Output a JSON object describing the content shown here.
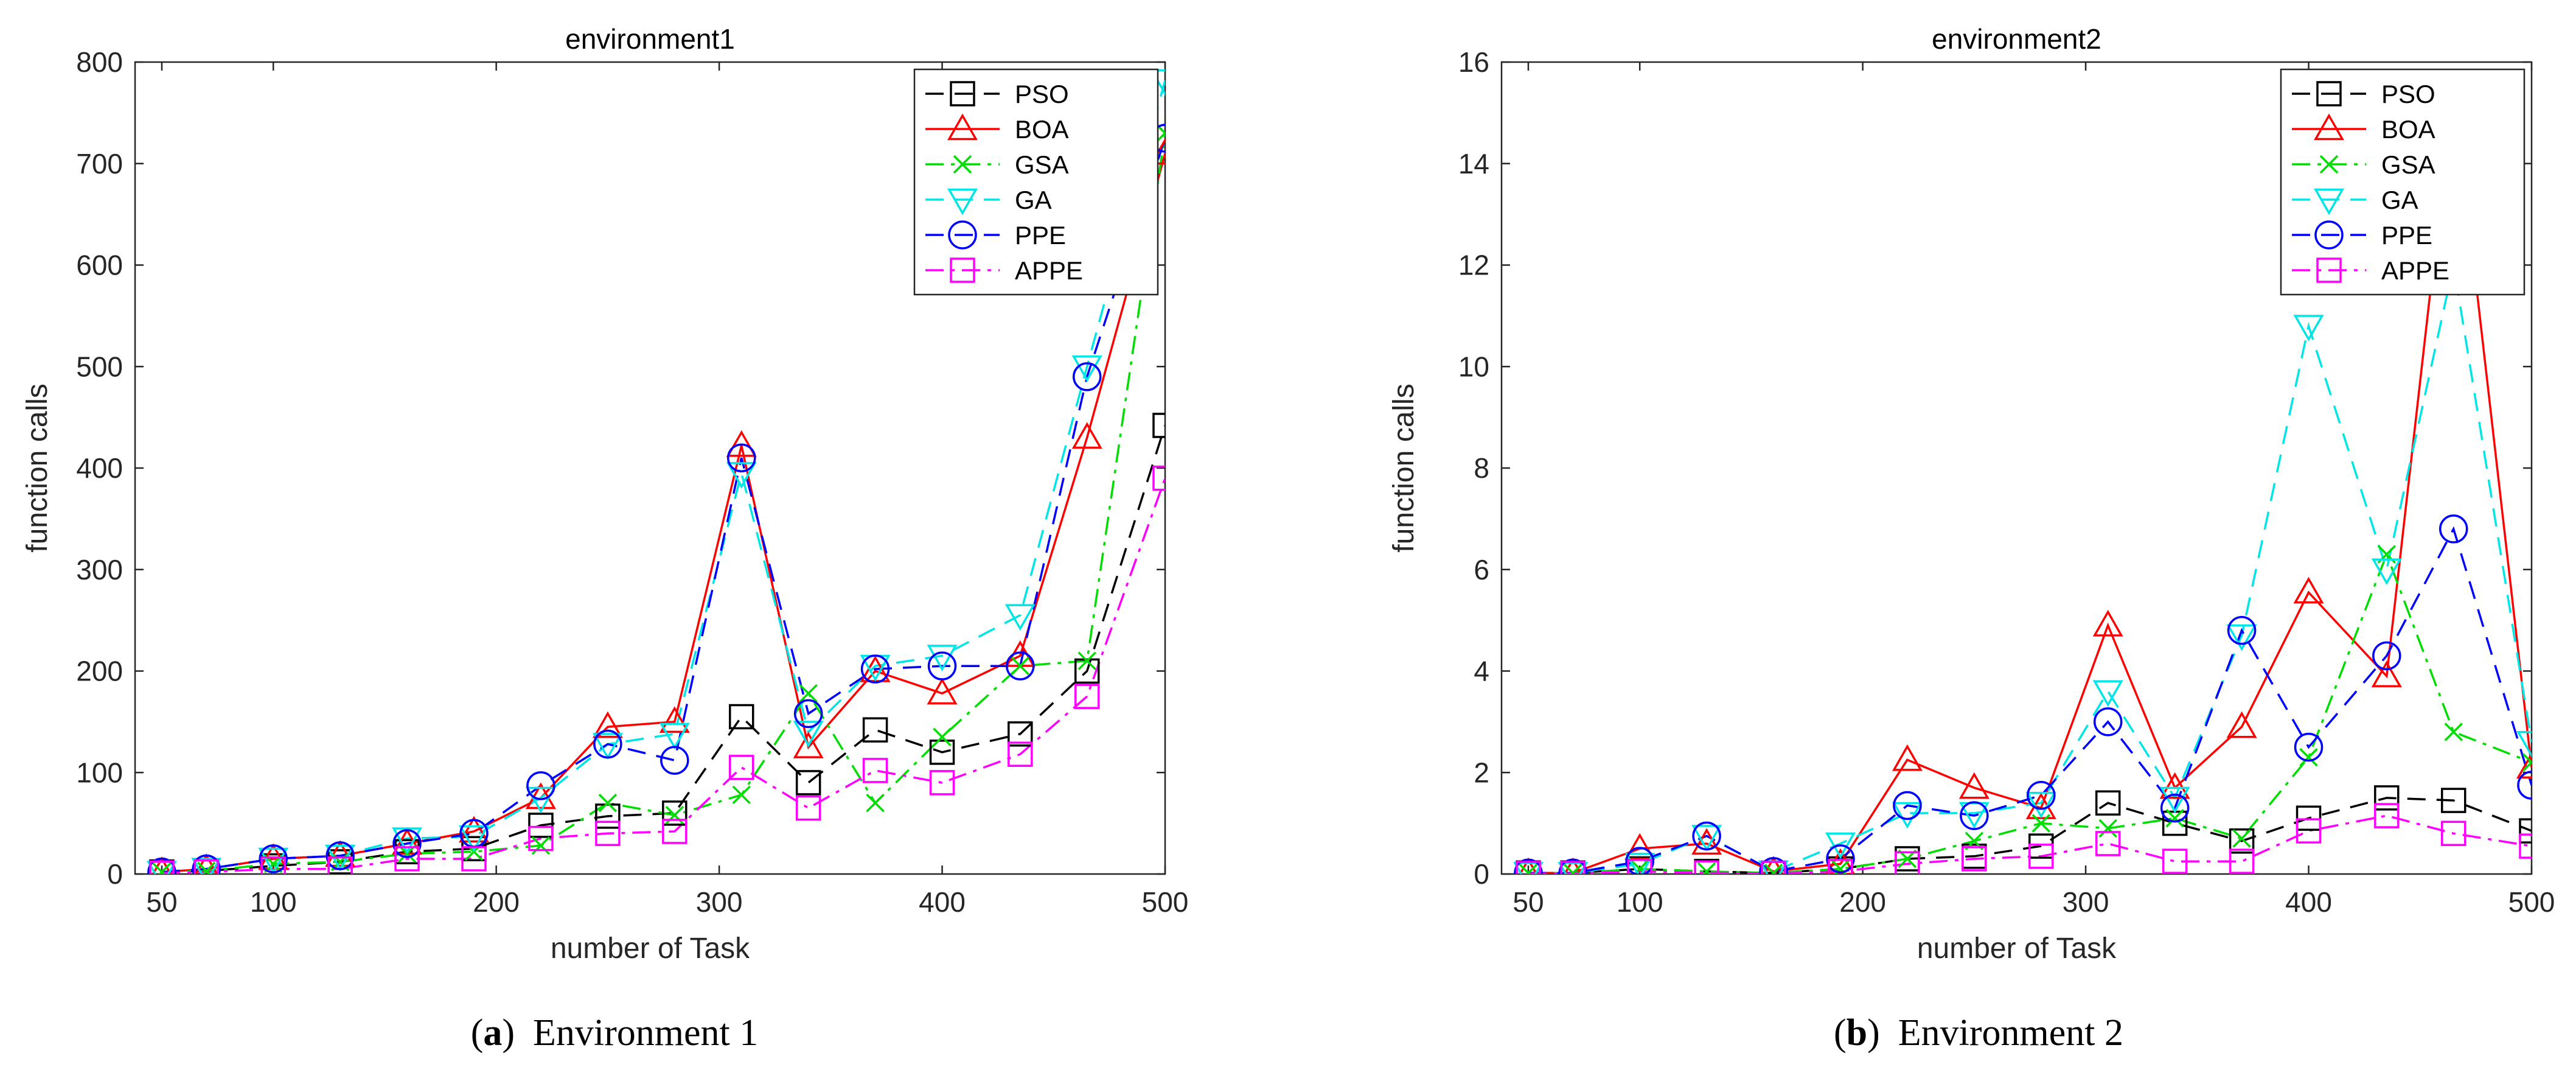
{
  "figure": {
    "panel_a": {
      "tag": "a",
      "text": "Environment 1"
    },
    "panel_b": {
      "tag": "b",
      "text": "Environment 2"
    }
  },
  "chart_data": [
    {
      "type": "line",
      "title": "environment1",
      "xlabel": "number of Task",
      "ylabel": "function calls",
      "xlim": [
        38,
        500
      ],
      "ylim": [
        0,
        800
      ],
      "xticks": [
        50,
        100,
        200,
        300,
        400,
        500
      ],
      "yticks": [
        0,
        100,
        200,
        300,
        400,
        500,
        600,
        700,
        800
      ],
      "legend_position": "top-right",
      "x": [
        50,
        70,
        100,
        130,
        160,
        190,
        220,
        250,
        280,
        310,
        340,
        370,
        400,
        435,
        465,
        500
      ],
      "series": [
        {
          "name": "PSO",
          "color": "#000000",
          "marker": "square",
          "dash": "dash",
          "values": [
            2,
            3,
            8,
            12,
            22,
            25,
            48,
            57,
            60,
            155,
            90,
            142,
            120,
            138,
            200,
            442
          ]
        },
        {
          "name": "BOA",
          "color": "#ff0000",
          "marker": "triangle-up",
          "dash": "solid",
          "values": [
            2,
            5,
            15,
            18,
            30,
            42,
            75,
            145,
            150,
            422,
            125,
            200,
            178,
            215,
            430,
            710
          ]
        },
        {
          "name": "GSA",
          "color": "#00dd00",
          "marker": "x",
          "dash": "dashdot",
          "values": [
            2,
            3,
            10,
            12,
            20,
            22,
            28,
            70,
            58,
            78,
            178,
            70,
            135,
            205,
            210,
            730
          ]
        },
        {
          "name": "GA",
          "color": "#00e5e5",
          "marker": "triangle-down",
          "dash": "dash",
          "values": [
            2,
            5,
            15,
            18,
            35,
            37,
            75,
            128,
            138,
            395,
            140,
            205,
            215,
            255,
            500,
            782
          ]
        },
        {
          "name": "PPE",
          "color": "#0000ff",
          "marker": "circle",
          "dash": "dash",
          "values": [
            2,
            5,
            15,
            18,
            30,
            40,
            87,
            128,
            112,
            410,
            158,
            202,
            205,
            205,
            490,
            725
          ]
        },
        {
          "name": "APPE",
          "color": "#ff00ff",
          "marker": "square",
          "dash": "dashdot",
          "values": [
            1,
            2,
            5,
            5,
            15,
            15,
            35,
            40,
            42,
            105,
            65,
            102,
            90,
            118,
            175,
            390
          ]
        }
      ]
    },
    {
      "type": "line",
      "title": "environment2",
      "xlabel": "number of Task",
      "ylabel": "function calls",
      "xlim": [
        38,
        500
      ],
      "ylim": [
        0,
        16
      ],
      "xticks": [
        50,
        100,
        200,
        300,
        400,
        500
      ],
      "yticks": [
        0,
        2,
        4,
        6,
        8,
        10,
        12,
        14,
        16
      ],
      "legend_position": "top-right",
      "x": [
        50,
        70,
        100,
        130,
        160,
        190,
        220,
        250,
        280,
        310,
        340,
        370,
        400,
        435,
        465,
        500
      ],
      "series": [
        {
          "name": "PSO",
          "color": "#000000",
          "marker": "square",
          "dash": "dash",
          "values": [
            0.02,
            0.02,
            0.1,
            0.05,
            0.02,
            0.1,
            0.3,
            0.35,
            0.55,
            1.4,
            1.0,
            0.65,
            1.1,
            1.5,
            1.45,
            0.85
          ]
        },
        {
          "name": "BOA",
          "color": "#ff0000",
          "marker": "triangle-up",
          "dash": "solid",
          "values": [
            0.02,
            0.02,
            0.5,
            0.6,
            0.05,
            0.2,
            2.25,
            1.7,
            1.3,
            4.9,
            1.7,
            2.9,
            5.55,
            3.9,
            15.5,
            2.1
          ]
        },
        {
          "name": "GSA",
          "color": "#00dd00",
          "marker": "x",
          "dash": "dashdot",
          "values": [
            0.02,
            0.02,
            0.1,
            0.05,
            0.02,
            0.1,
            0.3,
            0.65,
            1.0,
            0.9,
            1.1,
            0.7,
            2.3,
            6.3,
            2.8,
            2.2
          ]
        },
        {
          "name": "GA",
          "color": "#00e5e5",
          "marker": "triangle-down",
          "dash": "dash",
          "values": [
            0.02,
            0.02,
            0.2,
            0.75,
            0.05,
            0.6,
            1.2,
            1.2,
            1.4,
            3.6,
            1.5,
            4.7,
            10.8,
            6.0,
            12.0,
            2.6
          ]
        },
        {
          "name": "PPE",
          "color": "#0000ff",
          "marker": "circle",
          "dash": "dash",
          "values": [
            0.02,
            0.02,
            0.25,
            0.75,
            0.05,
            0.3,
            1.35,
            1.15,
            1.55,
            3.0,
            1.3,
            4.8,
            2.5,
            4.3,
            6.8,
            1.75
          ]
        },
        {
          "name": "APPE",
          "color": "#ff00ff",
          "marker": "square",
          "dash": "dashdot",
          "values": [
            0.01,
            0.01,
            0.05,
            0.02,
            0.01,
            0.05,
            0.2,
            0.3,
            0.35,
            0.6,
            0.25,
            0.25,
            0.85,
            1.15,
            0.8,
            0.55
          ]
        }
      ]
    }
  ]
}
